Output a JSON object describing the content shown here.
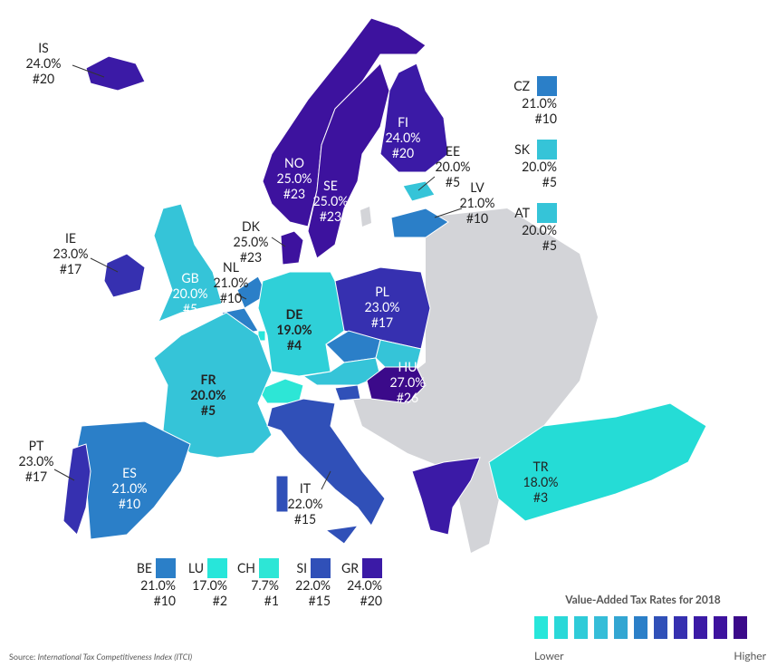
{
  "countries": [
    {
      "code": "IS",
      "rate": "24.0%",
      "rank": "#20"
    },
    {
      "code": "NO",
      "rate": "25.0%",
      "rank": "#23"
    },
    {
      "code": "SE",
      "rate": "25.0%",
      "rank": "#23"
    },
    {
      "code": "FI",
      "rate": "24.0%",
      "rank": "#20"
    },
    {
      "code": "EE",
      "rate": "20.0%",
      "rank": "#5"
    },
    {
      "code": "LV",
      "rate": "21.0%",
      "rank": "#10"
    },
    {
      "code": "DK",
      "rate": "25.0%",
      "rank": "#23"
    },
    {
      "code": "IE",
      "rate": "23.0%",
      "rank": "#17"
    },
    {
      "code": "GB",
      "rate": "20.0%",
      "rank": "#5"
    },
    {
      "code": "NL",
      "rate": "21.0%",
      "rank": "#10"
    },
    {
      "code": "DE",
      "rate": "19.0%",
      "rank": "#4"
    },
    {
      "code": "PL",
      "rate": "23.0%",
      "rank": "#17"
    },
    {
      "code": "HU",
      "rate": "27.0%",
      "rank": "#26"
    },
    {
      "code": "FR",
      "rate": "20.0%",
      "rank": "#5"
    },
    {
      "code": "PT",
      "rate": "23.0%",
      "rank": "#17"
    },
    {
      "code": "ES",
      "rate": "21.0%",
      "rank": "#10"
    },
    {
      "code": "IT",
      "rate": "22.0%",
      "rank": "#15"
    },
    {
      "code": "TR",
      "rate": "18.0%",
      "rank": "#3"
    }
  ],
  "side_legend": [
    {
      "code": "CZ",
      "rate": "21.0%",
      "rank": "#10"
    },
    {
      "code": "SK",
      "rate": "20.0%",
      "rank": "#5"
    },
    {
      "code": "AT",
      "rate": "20.0%",
      "rank": "#5"
    }
  ],
  "bottom_legend": [
    {
      "code": "BE",
      "rate": "21.0%",
      "rank": "#10"
    },
    {
      "code": "LU",
      "rate": "17.0%",
      "rank": "#2"
    },
    {
      "code": "CH",
      "rate": "7.7%",
      "rank": "#1"
    },
    {
      "code": "SI",
      "rate": "22.0%",
      "rank": "#15"
    },
    {
      "code": "GR",
      "rate": "24.0%",
      "rank": "#20"
    }
  ],
  "scale": {
    "title": "Value-Added Tax Rates for 2018",
    "low": "Lower",
    "high": "Higher"
  },
  "source": {
    "label": "Source:",
    "text": "International Tax Competitiveness Index (ITCI)"
  }
}
